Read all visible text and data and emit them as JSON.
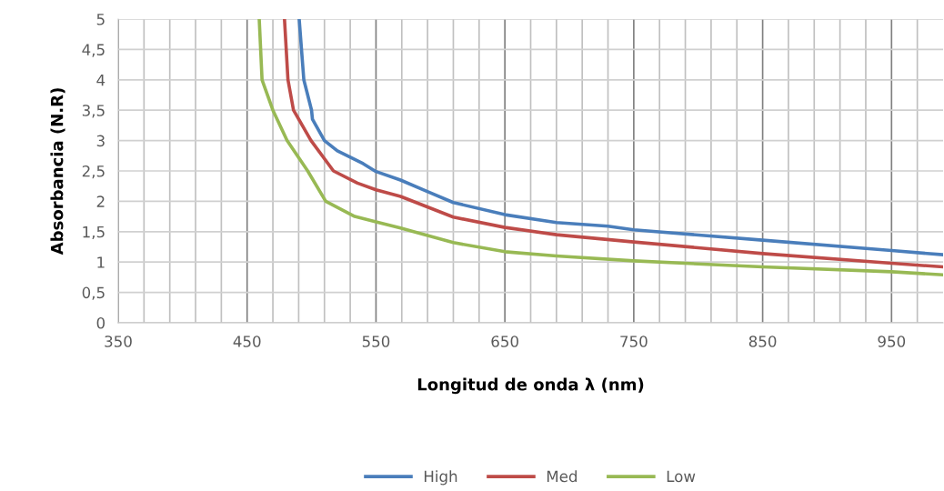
{
  "chart_data": {
    "type": "line",
    "xlabel": "Longitud de onda λ (nm)",
    "ylabel": "Absorbancia (N.R)",
    "xlim": [
      350,
      990
    ],
    "ylim": [
      0,
      5
    ],
    "xticks": [
      350,
      {
        "value": 370,
        "label": null
      },
      {
        "value": 390,
        "label": null
      },
      {
        "value": 410,
        "label": null
      },
      {
        "value": 430,
        "label": null
      },
      450,
      {
        "value": 470,
        "label": null
      },
      {
        "value": 490,
        "label": null
      },
      {
        "value": 510,
        "label": null
      },
      {
        "value": 530,
        "label": null
      },
      550,
      {
        "value": 570,
        "label": null
      },
      {
        "value": 590,
        "label": null
      },
      {
        "value": 610,
        "label": null
      },
      {
        "value": 630,
        "label": null
      },
      650,
      {
        "value": 670,
        "label": null
      },
      {
        "value": 690,
        "label": null
      },
      {
        "value": 710,
        "label": null
      },
      {
        "value": 730,
        "label": null
      },
      750,
      {
        "value": 770,
        "label": null
      },
      {
        "value": 790,
        "label": null
      },
      {
        "value": 810,
        "label": null
      },
      {
        "value": 830,
        "label": null
      },
      850,
      {
        "value": 870,
        "label": null
      },
      {
        "value": 890,
        "label": null
      },
      {
        "value": 910,
        "label": null
      },
      {
        "value": 930,
        "label": null
      },
      950,
      {
        "value": 970,
        "label": null
      }
    ],
    "yticks": [
      0,
      {
        "value": 0.5,
        "label": "0,5"
      },
      1,
      {
        "value": 1.5,
        "label": "1,5"
      },
      2,
      {
        "value": 2.5,
        "label": "2,5"
      },
      3,
      {
        "value": 3.5,
        "label": "3,5"
      },
      4,
      {
        "value": 4.5,
        "label": "4,5"
      },
      5
    ],
    "grid": true,
    "legend": "bottom",
    "marker": "none",
    "line_style": "solid",
    "series": [
      {
        "name": "High",
        "color": "#4a7ebb",
        "x": [
          490.4,
          494,
          500,
          500.7,
          510,
          520,
          540,
          550,
          569,
          589,
          610,
          650,
          690,
          730,
          750,
          850,
          950,
          990
        ],
        "values": [
          5,
          4,
          3.5,
          3.35,
          3.0,
          2.83,
          2.62,
          2.49,
          2.35,
          2.17,
          1.98,
          1.78,
          1.65,
          1.59,
          1.53,
          1.36,
          1.19,
          1.12
        ]
      },
      {
        "name": "Med",
        "color": "#be4b48",
        "x": [
          479,
          481.7,
          486,
          499.6,
          517,
          535.6,
          550,
          569,
          610,
          650,
          690,
          750,
          850,
          950,
          990
        ],
        "values": [
          5,
          4,
          3.5,
          3.0,
          2.5,
          2.3,
          2.19,
          2.08,
          1.74,
          1.57,
          1.45,
          1.33,
          1.14,
          0.98,
          0.92
        ]
      },
      {
        "name": "Low",
        "color": "#98b954",
        "x": [
          459.4,
          461.6,
          470,
          481,
          497,
          511,
          533.5,
          550,
          569,
          610,
          650,
          690,
          750,
          850,
          950,
          990
        ],
        "values": [
          5,
          4,
          3.5,
          3.0,
          2.5,
          2.0,
          1.75,
          1.66,
          1.56,
          1.32,
          1.17,
          1.1,
          1.02,
          0.92,
          0.84,
          0.79
        ]
      }
    ]
  }
}
